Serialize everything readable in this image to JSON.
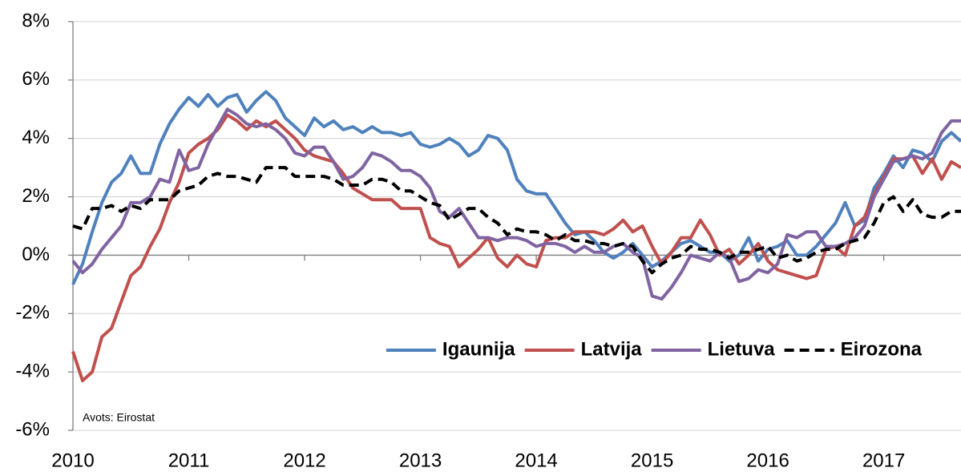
{
  "chart_data": {
    "type": "line",
    "annotation": "Avots: Eirostat",
    "categories": [
      "2010",
      null,
      null,
      null,
      null,
      null,
      null,
      null,
      null,
      null,
      null,
      null,
      "2011",
      null,
      null,
      null,
      null,
      null,
      null,
      null,
      null,
      null,
      null,
      null,
      "2012",
      null,
      null,
      null,
      null,
      null,
      null,
      null,
      null,
      null,
      null,
      null,
      "2013",
      null,
      null,
      null,
      null,
      null,
      null,
      null,
      null,
      null,
      null,
      null,
      "2014",
      null,
      null,
      null,
      null,
      null,
      null,
      null,
      null,
      null,
      null,
      null,
      "2015",
      null,
      null,
      null,
      null,
      null,
      null,
      null,
      null,
      null,
      null,
      null,
      "2016",
      null,
      null,
      null,
      null,
      null,
      null,
      null,
      null,
      null,
      null,
      null,
      "2017",
      null,
      null,
      null,
      null,
      null,
      null,
      null,
      null
    ],
    "series": [
      {
        "name": "Igaunija",
        "color": "#4f81bd",
        "values": [
          -1.0,
          -0.3,
          0.8,
          1.8,
          2.5,
          2.8,
          3.4,
          2.8,
          2.8,
          3.8,
          4.5,
          5.0,
          5.4,
          5.1,
          5.5,
          5.1,
          5.4,
          5.5,
          4.9,
          5.3,
          5.6,
          5.3,
          4.7,
          4.4,
          4.1,
          4.7,
          4.4,
          4.6,
          4.3,
          4.4,
          4.2,
          4.4,
          4.2,
          4.2,
          4.1,
          4.2,
          3.8,
          3.7,
          3.8,
          4.0,
          3.8,
          3.4,
          3.6,
          4.1,
          4.0,
          3.6,
          2.6,
          2.2,
          2.1,
          2.1,
          1.6,
          1.1,
          0.7,
          0.8,
          0.5,
          0.1,
          -0.1,
          0.1,
          0.4,
          0.0,
          -0.4,
          -0.2,
          0.1,
          0.4,
          0.5,
          0.3,
          0.1,
          0.1,
          -0.2,
          0.0,
          0.6,
          -0.2,
          0.2,
          0.3,
          0.5,
          0.0,
          0.0,
          0.3,
          0.7,
          1.1,
          1.8,
          1.0,
          1.2,
          2.3,
          2.8,
          3.4,
          3.0,
          3.6,
          3.5,
          3.2,
          3.9,
          4.2,
          3.9
        ]
      },
      {
        "name": "Latvija",
        "color": "#c0504d",
        "values": [
          -3.3,
          -4.3,
          -4.0,
          -2.8,
          -2.5,
          -1.6,
          -0.7,
          -0.4,
          0.3,
          0.9,
          1.8,
          2.5,
          3.5,
          3.8,
          4.0,
          4.3,
          4.8,
          4.6,
          4.3,
          4.6,
          4.4,
          4.6,
          4.3,
          4.0,
          3.6,
          3.4,
          3.3,
          3.2,
          2.8,
          2.3,
          2.1,
          1.9,
          1.9,
          1.9,
          1.6,
          1.6,
          1.6,
          0.6,
          0.4,
          0.3,
          -0.4,
          -0.1,
          0.2,
          0.6,
          -0.1,
          -0.4,
          0.0,
          -0.3,
          -0.4,
          0.5,
          0.6,
          0.6,
          0.8,
          0.8,
          0.8,
          0.7,
          0.9,
          1.2,
          0.8,
          1.0,
          0.3,
          -0.3,
          0.1,
          0.6,
          0.6,
          1.2,
          0.7,
          0.0,
          0.2,
          -0.3,
          0.0,
          0.4,
          -0.2,
          -0.5,
          -0.6,
          -0.7,
          -0.8,
          -0.7,
          0.2,
          0.3,
          0.0,
          1.0,
          1.3,
          2.1,
          2.7,
          3.3,
          3.3,
          3.4,
          2.8,
          3.3,
          2.6,
          3.2,
          3.0
        ]
      },
      {
        "name": "Lietuva",
        "color": "#8064a2",
        "values": [
          -0.2,
          -0.6,
          -0.3,
          0.2,
          0.6,
          1.0,
          1.8,
          1.8,
          2.0,
          2.6,
          2.5,
          3.6,
          2.9,
          3.0,
          3.8,
          4.4,
          5.0,
          4.8,
          4.5,
          4.4,
          4.5,
          4.3,
          4.0,
          3.5,
          3.4,
          3.7,
          3.7,
          3.2,
          2.6,
          2.7,
          3.0,
          3.5,
          3.4,
          3.2,
          2.9,
          2.9,
          2.7,
          2.3,
          1.5,
          1.3,
          1.6,
          1.1,
          0.6,
          0.6,
          0.5,
          0.6,
          0.6,
          0.5,
          0.3,
          0.4,
          0.4,
          0.3,
          0.1,
          0.3,
          0.1,
          0.1,
          0.3,
          0.4,
          0.1,
          -0.1,
          -1.4,
          -1.5,
          -1.1,
          -0.6,
          0.0,
          -0.1,
          -0.2,
          0.1,
          -0.1,
          -0.9,
          -0.8,
          -0.5,
          -0.6,
          -0.3,
          0.7,
          0.6,
          0.8,
          0.8,
          0.3,
          0.3,
          0.4,
          0.6,
          1.0,
          2.0,
          2.6,
          3.2,
          3.3,
          3.4,
          3.3,
          3.5,
          4.2,
          4.6,
          4.6
        ]
      },
      {
        "name": "Eirozona",
        "color": "#000000",
        "dashed": true,
        "values": [
          1.0,
          0.9,
          1.6,
          1.6,
          1.7,
          1.5,
          1.7,
          1.6,
          1.9,
          1.9,
          1.9,
          2.2,
          2.3,
          2.4,
          2.7,
          2.8,
          2.7,
          2.7,
          2.6,
          2.5,
          3.0,
          3.0,
          3.0,
          2.7,
          2.7,
          2.7,
          2.7,
          2.6,
          2.4,
          2.4,
          2.4,
          2.6,
          2.6,
          2.5,
          2.2,
          2.2,
          2.0,
          1.8,
          1.7,
          1.2,
          1.4,
          1.6,
          1.6,
          1.3,
          1.1,
          0.7,
          0.9,
          0.8,
          0.8,
          0.7,
          0.5,
          0.7,
          0.5,
          0.5,
          0.4,
          0.4,
          0.3,
          0.4,
          0.3,
          -0.2,
          -0.6,
          -0.3,
          -0.1,
          0.0,
          0.3,
          0.2,
          0.2,
          0.1,
          -0.1,
          0.1,
          0.1,
          0.2,
          0.3,
          -0.1,
          0.0,
          -0.2,
          -0.1,
          0.1,
          0.2,
          0.2,
          0.4,
          0.5,
          0.6,
          1.1,
          1.8,
          2.0,
          1.5,
          1.9,
          1.4,
          1.3,
          1.3,
          1.5,
          1.5
        ]
      }
    ],
    "ylim": [
      -6,
      8
    ],
    "yticks": [
      {
        "value": -6,
        "label": "-6%"
      },
      {
        "value": -4,
        "label": "-4%"
      },
      {
        "value": -2,
        "label": "-2%"
      },
      {
        "value": 0,
        "label": "0%"
      },
      {
        "value": 2,
        "label": "2%"
      },
      {
        "value": 4,
        "label": "4%"
      },
      {
        "value": 6,
        "label": "6%"
      },
      {
        "value": 8,
        "label": "8%"
      }
    ],
    "grid": true,
    "legend": "lower right"
  }
}
